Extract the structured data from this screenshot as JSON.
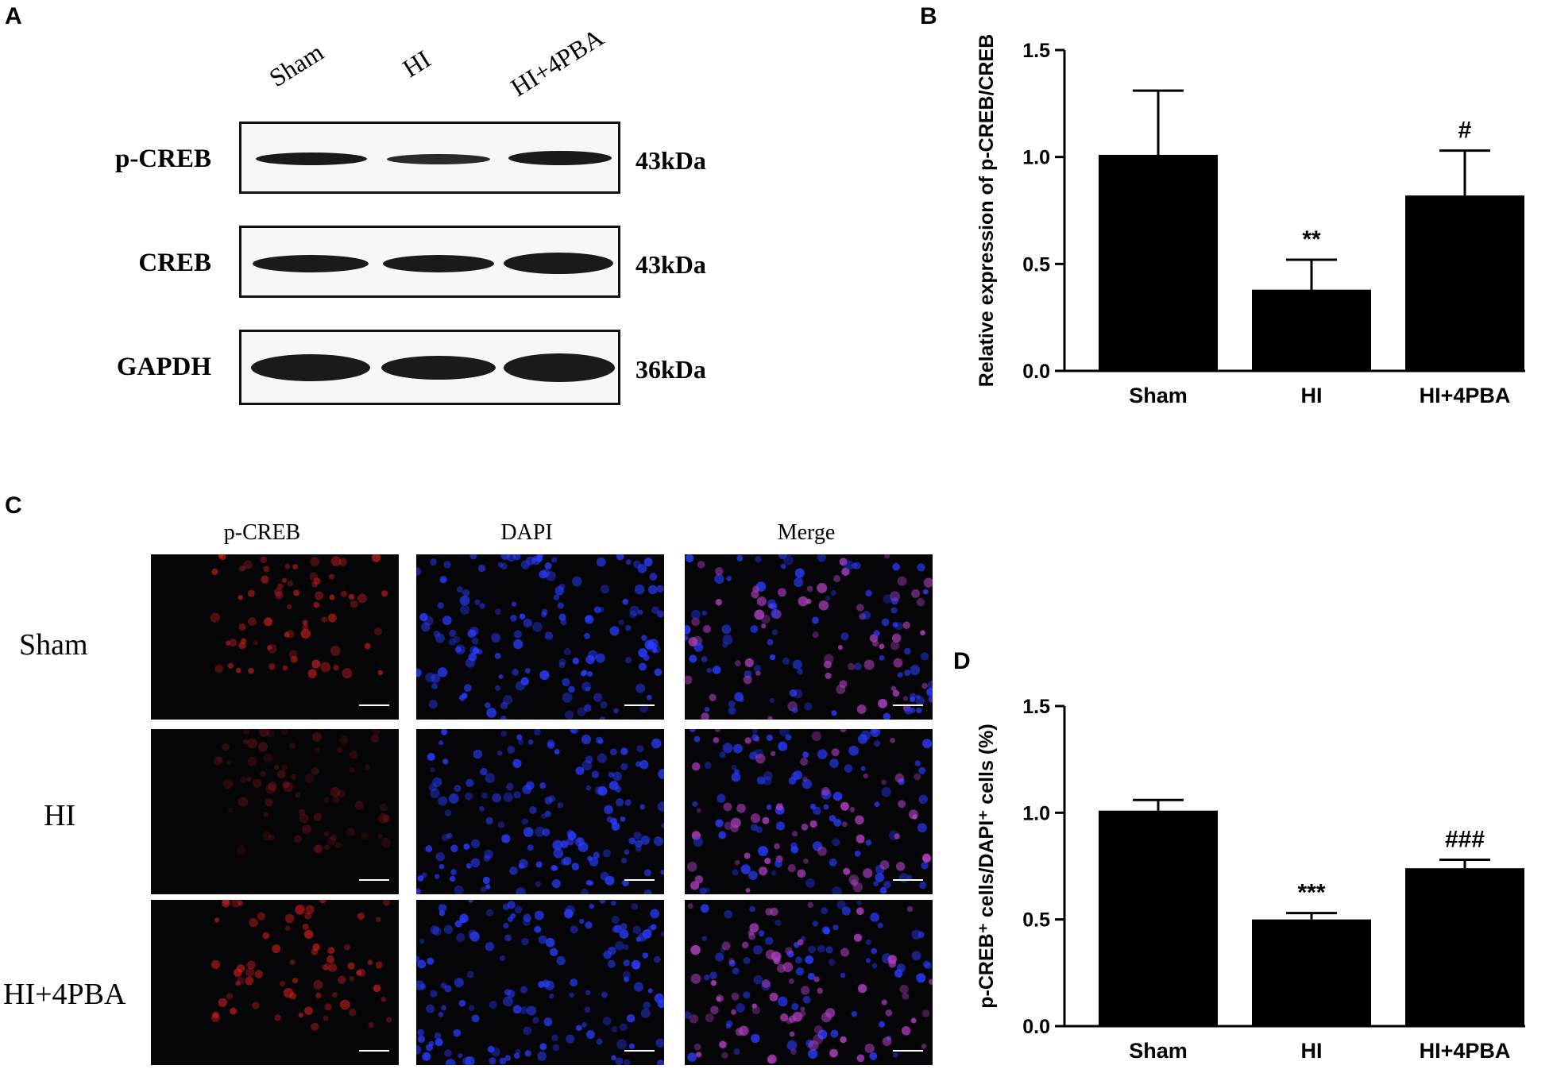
{
  "panels": {
    "a": "A",
    "b": "B",
    "c": "C",
    "d": "D"
  },
  "western_blot": {
    "lanes": [
      "Sham",
      "HI",
      "HI+4PBA"
    ],
    "rows": [
      {
        "protein": "p-CREB",
        "kda": "43kDa"
      },
      {
        "protein": "CREB",
        "kda": "43kDa"
      },
      {
        "protein": "GAPDH",
        "kda": "36kDa"
      }
    ]
  },
  "immunofluorescence": {
    "columns": [
      "p-CREB",
      "DAPI",
      "Merge"
    ],
    "rows": [
      "Sham",
      "HI",
      "HI+4PBA"
    ],
    "colors": {
      "pcreb": "#d02020",
      "dapi": "#2a3cff",
      "merge": "#b040c0"
    }
  },
  "chart_data": [
    {
      "type": "bar",
      "panel": "B",
      "categories": [
        "Sham",
        "HI",
        "HI+4PBA"
      ],
      "values": [
        1.01,
        0.38,
        0.82
      ],
      "errors": [
        0.3,
        0.14,
        0.21
      ],
      "annotations": [
        "",
        "**",
        "#"
      ],
      "ylabel": "Relative expression of p-CREB/CREB",
      "ylim": [
        0,
        1.5
      ],
      "yticks": [
        "0.0",
        "0.5",
        "1.0",
        "1.5"
      ],
      "bar_color": "#000000"
    },
    {
      "type": "bar",
      "panel": "D",
      "categories": [
        "Sham",
        "HI",
        "HI+4PBA"
      ],
      "values": [
        1.01,
        0.5,
        0.74
      ],
      "errors": [
        0.05,
        0.03,
        0.04
      ],
      "annotations": [
        "",
        "***",
        "###"
      ],
      "ylabel": "p-CREB⁺ cells/DAPI⁺ cells (%)",
      "ylim": [
        0,
        1.5
      ],
      "yticks": [
        "0.0",
        "0.5",
        "1.0",
        "1.5"
      ],
      "bar_color": "#000000"
    }
  ]
}
